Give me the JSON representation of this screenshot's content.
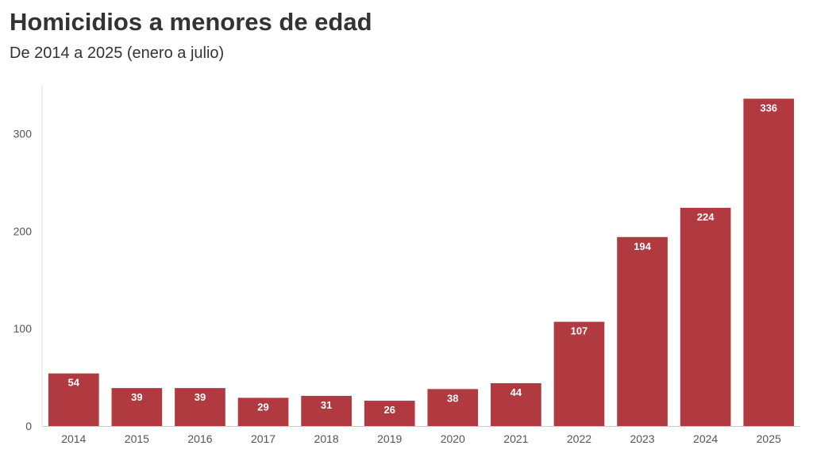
{
  "title": "Homicidios a menores de edad",
  "subtitle": "De 2014 a 2025 (enero a julio)",
  "bar_color": "#b03a40",
  "chart_data": {
    "type": "bar",
    "title": "Homicidios a menores de edad",
    "subtitle": "De 2014 a 2025 (enero a julio)",
    "categories": [
      "2014",
      "2015",
      "2016",
      "2017",
      "2018",
      "2019",
      "2020",
      "2021",
      "2022",
      "2023",
      "2024",
      "2025"
    ],
    "values": [
      54,
      39,
      39,
      29,
      31,
      26,
      38,
      44,
      107,
      194,
      224,
      336
    ],
    "yticks": [
      0,
      100,
      200,
      300
    ],
    "ylim": [
      0,
      350
    ],
    "xlabel": "",
    "ylabel": "",
    "grid": false,
    "data_labels": true
  }
}
